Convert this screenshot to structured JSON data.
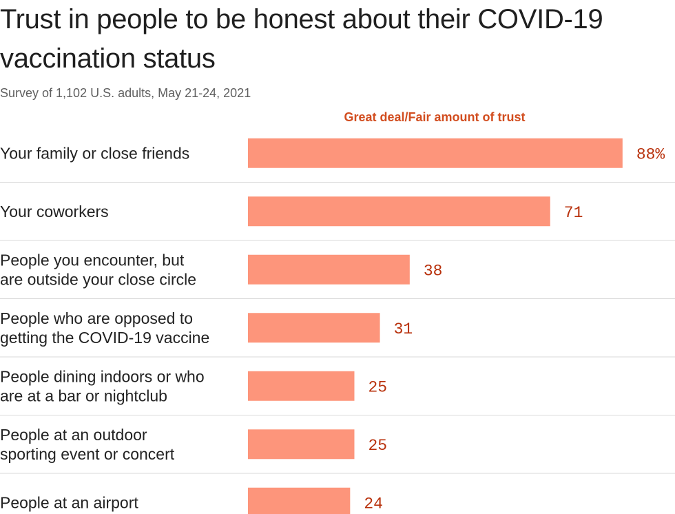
{
  "title": "Trust in people to be honest about their COVID-19 vaccination status",
  "subtitle": "Survey of 1,102 U.S. adults, May 21-24, 2021",
  "colors": {
    "bar": "#fd957b",
    "value_text": "#b8310c",
    "legend_text": "#d24d1f",
    "separator": "#d9d9d9"
  },
  "chart_data": {
    "type": "bar",
    "orientation": "horizontal",
    "series": [
      {
        "name": "Great deal/Fair amount of trust",
        "values": [
          88,
          71,
          38,
          31,
          25,
          25,
          24
        ]
      }
    ],
    "categories": [
      [
        "Your family or close friends"
      ],
      [
        "Your coworkers"
      ],
      [
        "People you encounter, but",
        "are outside your close circle"
      ],
      [
        "People who are opposed to",
        "getting the COVID-19 vaccine"
      ],
      [
        "People dining indoors or who",
        "are at a bar or nightclub"
      ],
      [
        "People at an outdoor",
        "sporting event or concert"
      ],
      [
        "People at an airport"
      ]
    ],
    "value_labels": [
      "88%",
      "71",
      "38",
      "31",
      "25",
      "25",
      "24"
    ],
    "xlim": [
      0,
      100
    ],
    "grid": false,
    "legend_placement": "top"
  }
}
